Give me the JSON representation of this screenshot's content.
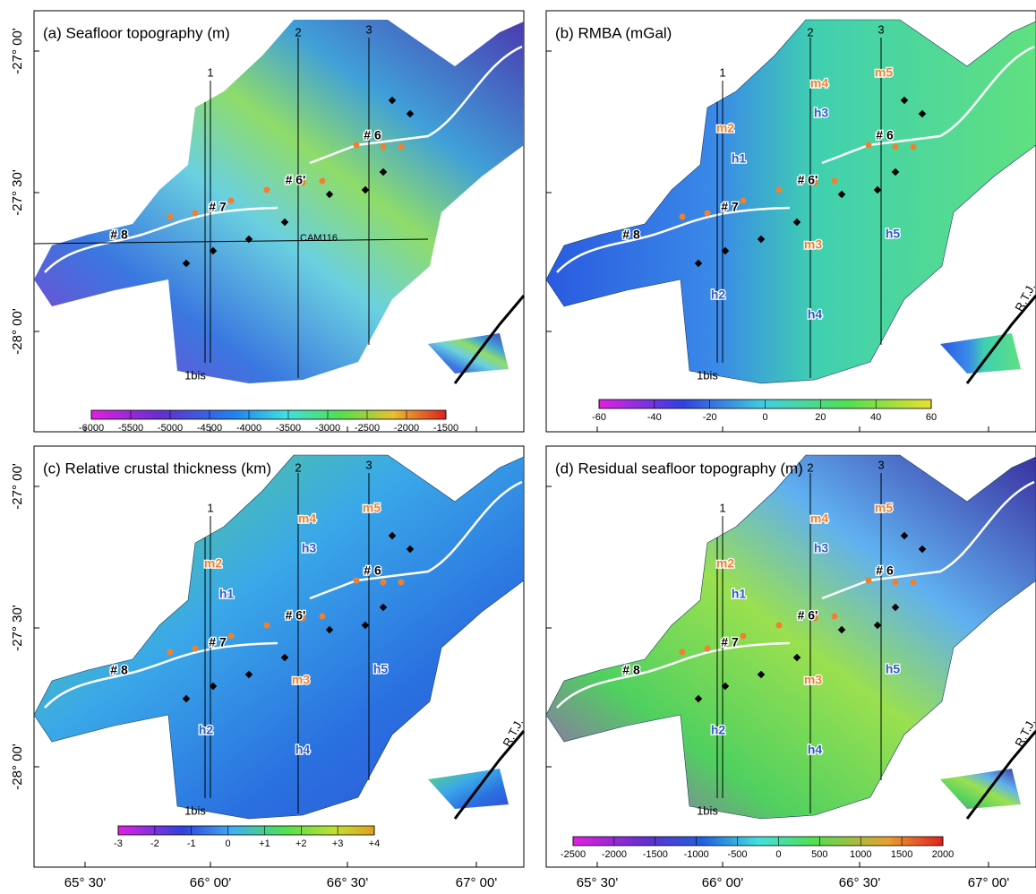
{
  "axes": {
    "lat_labels": [
      "-27° 00'",
      "-27° 30'",
      "-28° 00'"
    ],
    "lon_labels": [
      "65° 30'",
      "66° 00'",
      "66° 30'",
      "67° 00'"
    ]
  },
  "profiles": [
    "1",
    "2",
    "3",
    "1bis"
  ],
  "rtj": "R.T.J.",
  "panels": [
    {
      "title": "(a) Seafloor topography (m)",
      "labels": [
        "# 6",
        "# 6'",
        "# 7",
        "# 8",
        "CAM116"
      ],
      "colorbar": [
        "-6000",
        "-5500",
        "-5000",
        "-4500",
        "-4000",
        "-3500",
        "-3000",
        "-2500",
        "-2000",
        "-1500"
      ]
    },
    {
      "title": "(b) RMBA (mGal)",
      "labels": [
        "m4",
        "m5",
        "h3",
        "m2",
        "h1",
        "# 6",
        "# 6'",
        "# 7",
        "# 8",
        "m3",
        "h5",
        "h2",
        "h4"
      ],
      "colorbar": [
        "-60",
        "-40",
        "-20",
        "0",
        "20",
        "40",
        "60"
      ]
    },
    {
      "title": "(c) Relative crustal thickness (km)",
      "labels": [
        "m4",
        "m5",
        "h3",
        "m2",
        "h1",
        "# 6",
        "# 6'",
        "# 7",
        "# 8",
        "m3",
        "h5",
        "h2",
        "h4"
      ],
      "colorbar": [
        "-3",
        "-2",
        "-1",
        "0",
        "+1",
        "+2",
        "+3",
        "+4"
      ]
    },
    {
      "title": "(d) Residual seafloor topography (m)",
      "labels": [
        "m4",
        "m5",
        "h3",
        "m2",
        "h1",
        "# 6",
        "# 6'",
        "# 7",
        "# 8",
        "m3",
        "h5",
        "h2",
        "h4"
      ],
      "colorbar": [
        "-2500",
        "-2000",
        "-1500",
        "-1000",
        "-500",
        "0",
        "500",
        "1000",
        "1500",
        "2000"
      ]
    }
  ]
}
